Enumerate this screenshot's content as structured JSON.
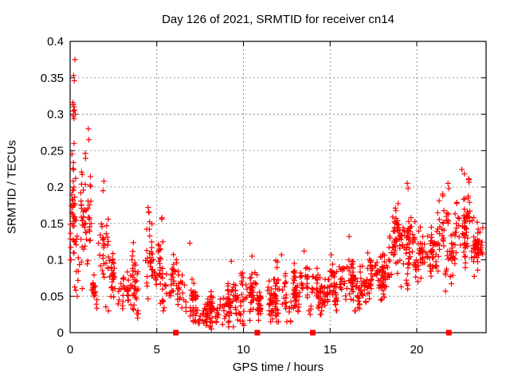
{
  "chart_data": {
    "type": "scatter",
    "title": "Day 126 of 2021, SRMTID for receiver cn14",
    "xlabel": "GPS time / hours",
    "ylabel": "SRMTID / TECUs",
    "xlim": [
      0,
      24
    ],
    "ylim": [
      0,
      0.4
    ],
    "xticks": [
      0,
      5,
      10,
      15,
      20
    ],
    "xtick_labels": [
      "0",
      "5",
      "10",
      "15",
      "20"
    ],
    "yticks": [
      0,
      0.05,
      0.1,
      0.15,
      0.2,
      0.25,
      0.3,
      0.35,
      0.4
    ],
    "ytick_labels": [
      "0",
      "0.05",
      "0.1",
      "0.15",
      "0.2",
      "0.25",
      "0.3",
      "0.35",
      "0.4"
    ],
    "grid": true,
    "legend": "none",
    "colors": {
      "marker": "#ff0000",
      "grid": "#909090",
      "axis": "#000000",
      "background": "#ffffff"
    },
    "series": [
      {
        "name": "srmtid-scatter",
        "marker": "plus",
        "bins_schema": [
          "x_start",
          "x_end",
          "count",
          "y_min",
          "y_max",
          "y_mode"
        ],
        "density_bins": [
          [
            0.02,
            0.3,
            40,
            0.1,
            0.31,
            0.17
          ],
          [
            0.1,
            0.32,
            5,
            0.28,
            0.355,
            0.31
          ],
          [
            0.3,
            0.8,
            30,
            0.05,
            0.25,
            0.13
          ],
          [
            0.8,
            1.3,
            34,
            0.06,
            0.28,
            0.15
          ],
          [
            1.3,
            1.7,
            22,
            0.025,
            0.12,
            0.06
          ],
          [
            1.7,
            2.15,
            30,
            0.03,
            0.205,
            0.09
          ],
          [
            2.15,
            2.7,
            26,
            0.035,
            0.14,
            0.075
          ],
          [
            2.7,
            3.4,
            30,
            0.025,
            0.11,
            0.055
          ],
          [
            3.4,
            4.2,
            40,
            0.02,
            0.155,
            0.06
          ],
          [
            4.2,
            5.3,
            65,
            0.04,
            0.175,
            0.095
          ],
          [
            5.3,
            6.4,
            45,
            0.03,
            0.13,
            0.07
          ],
          [
            6.4,
            7.3,
            45,
            0.015,
            0.125,
            0.05
          ],
          [
            7.3,
            8.6,
            70,
            0.005,
            0.065,
            0.03
          ],
          [
            8.6,
            9.7,
            60,
            0.008,
            0.095,
            0.04
          ],
          [
            9.7,
            10.75,
            58,
            0.01,
            0.105,
            0.045
          ],
          [
            10.75,
            11.7,
            56,
            0.015,
            0.09,
            0.045
          ],
          [
            11.7,
            12.7,
            56,
            0.015,
            0.11,
            0.05
          ],
          [
            12.7,
            13.7,
            60,
            0.02,
            0.11,
            0.055
          ],
          [
            13.7,
            14.7,
            60,
            0.025,
            0.125,
            0.06
          ],
          [
            14.7,
            15.7,
            62,
            0.03,
            0.125,
            0.065
          ],
          [
            15.7,
            16.7,
            64,
            0.03,
            0.13,
            0.07
          ],
          [
            16.7,
            17.7,
            60,
            0.035,
            0.125,
            0.07
          ],
          [
            17.7,
            18.45,
            52,
            0.04,
            0.14,
            0.08
          ],
          [
            18.45,
            19.45,
            70,
            0.06,
            0.205,
            0.115
          ],
          [
            19.45,
            20.25,
            55,
            0.07,
            0.175,
            0.115
          ],
          [
            20.25,
            21.25,
            60,
            0.075,
            0.19,
            0.12
          ],
          [
            21.25,
            22.15,
            60,
            0.05,
            0.205,
            0.12
          ],
          [
            22.15,
            23.25,
            70,
            0.08,
            0.225,
            0.15
          ],
          [
            23.25,
            23.95,
            45,
            0.07,
            0.175,
            0.115
          ]
        ],
        "extra_points": [
          [
            0.28,
            0.375
          ],
          [
            0.2,
            0.353
          ],
          [
            0.24,
            0.346
          ],
          [
            0.16,
            0.316
          ],
          [
            0.3,
            0.3
          ],
          [
            0.22,
            0.294
          ],
          [
            1.05,
            0.28
          ],
          [
            1.08,
            0.265
          ],
          [
            1.95,
            0.208
          ],
          [
            1.9,
            0.195
          ],
          [
            4.5,
            0.172
          ],
          [
            4.55,
            0.165
          ],
          [
            6.9,
            0.123
          ],
          [
            9.3,
            0.098
          ],
          [
            10.5,
            0.105
          ],
          [
            12.2,
            0.107
          ],
          [
            13.5,
            0.112
          ],
          [
            16.1,
            0.132
          ],
          [
            19.45,
            0.205
          ],
          [
            19.5,
            0.198
          ],
          [
            21.8,
            0.205
          ],
          [
            21.85,
            0.198
          ],
          [
            22.6,
            0.224
          ],
          [
            22.75,
            0.218
          ],
          [
            23.0,
            0.21
          ]
        ]
      },
      {
        "name": "zero-flags",
        "marker": "filled-square",
        "points": [
          [
            6.1,
            0
          ],
          [
            10.8,
            0
          ],
          [
            14.0,
            0
          ],
          [
            21.85,
            0
          ]
        ]
      }
    ]
  }
}
